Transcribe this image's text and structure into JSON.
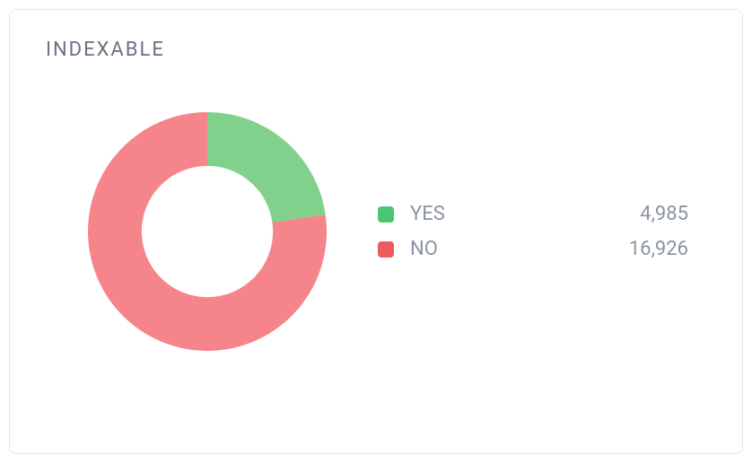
{
  "card": {
    "title": "INDEXABLE",
    "title_color": "#6b7280",
    "title_fontsize": 22,
    "border_color": "#e5e7eb",
    "background_color": "#ffffff"
  },
  "chart": {
    "type": "donut",
    "inner_radius_ratio": 0.55,
    "start_angle_deg": 0,
    "series": [
      {
        "key": "yes",
        "label": "YES",
        "value": 4985,
        "display_value": "4,985",
        "color": "#81d18d"
      },
      {
        "key": "no",
        "label": "NO",
        "value": 16926,
        "display_value": "16,926",
        "color": "#f5858a"
      }
    ],
    "legend": {
      "text_color": "#8b93a4",
      "fontsize": 22,
      "swatch_radius": 4,
      "swatch_size": 18,
      "swatch_colors": {
        "yes": "#4bc571",
        "no": "#f0595e"
      }
    }
  }
}
